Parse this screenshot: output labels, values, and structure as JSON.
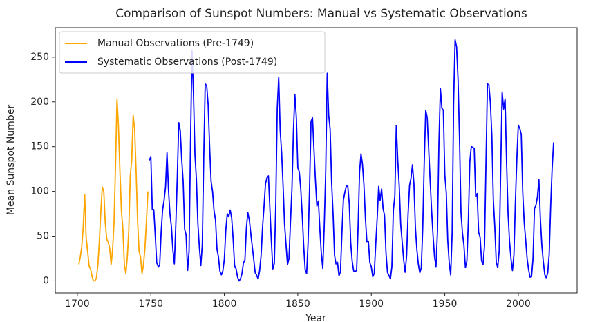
{
  "chart_data": {
    "type": "line",
    "title": "Comparison of Sunspot Numbers: Manual vs Systematic Observations",
    "xlabel": "Year",
    "ylabel": "Mean Sunspot Number",
    "xlim": [
      1685,
      2040
    ],
    "xticks": [
      1700,
      1750,
      1800,
      1850,
      1900,
      1950,
      2000
    ],
    "ylim": [
      -13.5,
      283
    ],
    "yticks": [
      0,
      50,
      100,
      150,
      200,
      250
    ],
    "grid": false,
    "legend": "upper left",
    "series": [
      {
        "name": "Manual Observations (Pre-1749)",
        "color": "#ffa500",
        "x": [
          1701,
          1702,
          1703,
          1704,
          1705,
          1706,
          1707,
          1708,
          1709,
          1710,
          1711,
          1712,
          1713,
          1714,
          1715,
          1716,
          1717,
          1718,
          1719,
          1720,
          1721,
          1722,
          1723,
          1724,
          1725,
          1726,
          1727,
          1728,
          1729,
          1730,
          1731,
          1732,
          1733,
          1734,
          1735,
          1736,
          1737,
          1738,
          1739,
          1740,
          1741,
          1742,
          1743,
          1744,
          1745,
          1746,
          1747,
          1748
        ],
        "values": [
          18.3,
          26.7,
          38.3,
          60.0,
          96.7,
          48.3,
          33.3,
          16.7,
          13.3,
          5.0,
          0.0,
          0.0,
          3.3,
          18.3,
          45.0,
          78.3,
          105.0,
          100.0,
          65.0,
          46.7,
          43.3,
          36.7,
          18.3,
          35.0,
          66.7,
          130.0,
          203.3,
          171.7,
          121.7,
          78.3,
          58.3,
          18.3,
          8.3,
          26.7,
          56.7,
          116.7,
          135.0,
          185.0,
          168.3,
          121.7,
          66.7,
          33.3,
          26.7,
          8.3,
          18.3,
          36.7,
          66.7,
          100.0
        ]
      },
      {
        "name": "Systematic Observations (Post-1749)",
        "color": "#0000ff",
        "x": [
          1749,
          1750,
          1751,
          1752,
          1753,
          1754,
          1755,
          1756,
          1757,
          1758,
          1759,
          1760,
          1761,
          1762,
          1763,
          1764,
          1765,
          1766,
          1767,
          1768,
          1769,
          1770,
          1771,
          1772,
          1773,
          1774,
          1775,
          1776,
          1777,
          1778,
          1779,
          1780,
          1781,
          1782,
          1783,
          1784,
          1785,
          1786,
          1787,
          1788,
          1789,
          1790,
          1791,
          1792,
          1793,
          1794,
          1795,
          1796,
          1797,
          1798,
          1799,
          1800,
          1801,
          1802,
          1803,
          1804,
          1805,
          1806,
          1807,
          1808,
          1809,
          1810,
          1811,
          1812,
          1813,
          1814,
          1815,
          1816,
          1817,
          1818,
          1819,
          1820,
          1821,
          1822,
          1823,
          1824,
          1825,
          1826,
          1827,
          1828,
          1829,
          1830,
          1831,
          1832,
          1833,
          1834,
          1835,
          1836,
          1837,
          1838,
          1839,
          1840,
          1841,
          1842,
          1843,
          1844,
          1845,
          1846,
          1847,
          1848,
          1849,
          1850,
          1851,
          1852,
          1853,
          1854,
          1855,
          1856,
          1857,
          1858,
          1859,
          1860,
          1861,
          1862,
          1863,
          1864,
          1865,
          1866,
          1867,
          1868,
          1869,
          1870,
          1871,
          1872,
          1873,
          1874,
          1875,
          1876,
          1877,
          1878,
          1879,
          1880,
          1881,
          1882,
          1883,
          1884,
          1885,
          1886,
          1887,
          1888,
          1889,
          1890,
          1891,
          1892,
          1893,
          1894,
          1895,
          1896,
          1897,
          1898,
          1899,
          1900,
          1901,
          1902,
          1903,
          1904,
          1905,
          1906,
          1907,
          1908,
          1909,
          1910,
          1911,
          1912,
          1913,
          1914,
          1915,
          1916,
          1917,
          1918,
          1919,
          1920,
          1921,
          1922,
          1923,
          1924,
          1925,
          1926,
          1927,
          1928,
          1929,
          1930,
          1931,
          1932,
          1933,
          1934,
          1935,
          1936,
          1937,
          1938,
          1939,
          1940,
          1941,
          1942,
          1943,
          1944,
          1945,
          1946,
          1947,
          1948,
          1949,
          1950,
          1951,
          1952,
          1953,
          1954,
          1955,
          1956,
          1957,
          1958,
          1959,
          1960,
          1961,
          1962,
          1963,
          1964,
          1965,
          1966,
          1967,
          1968,
          1969,
          1970,
          1971,
          1972,
          1973,
          1974,
          1975,
          1976,
          1977,
          1978,
          1979,
          1980,
          1981,
          1982,
          1983,
          1984,
          1985,
          1986,
          1987,
          1988,
          1989,
          1990,
          1991,
          1992,
          1993,
          1994,
          1995,
          1996,
          1997,
          1998,
          1999,
          2000,
          2001,
          2002,
          2003,
          2004,
          2005,
          2006,
          2007,
          2008,
          2009,
          2010,
          2011,
          2012,
          2013,
          2014,
          2015,
          2016,
          2017,
          2018,
          2019,
          2020,
          2021,
          2022,
          2023,
          2024
        ],
        "values": [
          134.7,
          139.0,
          79.5,
          79.7,
          51.2,
          20.3,
          16.0,
          17.0,
          54.0,
          79.3,
          90.0,
          104.8,
          143.2,
          102.0,
          75.2,
          60.7,
          34.8,
          19.0,
          63.0,
          116.3,
          176.8,
          168.0,
          136.0,
          110.8,
          58.0,
          51.0,
          11.7,
          33.0,
          154.2,
          257.3,
          209.8,
          141.3,
          113.5,
          64.2,
          38.0,
          17.0,
          40.2,
          138.2,
          220.0,
          218.2,
          196.8,
          149.8,
          111.0,
          100.0,
          78.2,
          68.3,
          35.5,
          26.7,
          10.7,
          6.8,
          11.3,
          24.2,
          56.7,
          75.0,
          71.8,
          79.2,
          70.3,
          46.8,
          16.8,
          13.5,
          4.2,
          0.0,
          2.3,
          8.3,
          20.3,
          23.2,
          59.0,
          76.3,
          68.3,
          52.9,
          38.5,
          24.2,
          9.2,
          6.3,
          2.2,
          11.4,
          28.2,
          59.9,
          83.0,
          108.5,
          115.2,
          117.4,
          80.8,
          44.3,
          13.4,
          19.5,
          85.8,
          192.7,
          227.3,
          168.7,
          143.0,
          105.5,
          63.3,
          40.3,
          18.1,
          25.1,
          65.8,
          102.7,
          166.3,
          208.3,
          182.5,
          126.3,
          122.0,
          102.7,
          74.1,
          39.0,
          12.7,
          8.2,
          43.4,
          104.4,
          178.3,
          182.2,
          146.6,
          112.1,
          83.5,
          89.2,
          57.8,
          30.7,
          13.9,
          62.8,
          123.6,
          232.0,
          185.3,
          169.2,
          110.1,
          74.5,
          28.3,
          18.9,
          20.7,
          5.7,
          10.0,
          53.7,
          90.5,
          99.0,
          106.1,
          105.8,
          86.3,
          42.4,
          21.8,
          11.2,
          10.4,
          11.8,
          59.5,
          121.7,
          142.0,
          130.0,
          106.6,
          69.4,
          43.8,
          44.4,
          20.2,
          15.7,
          4.6,
          8.5,
          40.8,
          70.1,
          105.5,
          90.1,
          102.8,
          80.9,
          73.2,
          30.9,
          9.5,
          6.0,
          2.4,
          16.1,
          79.0,
          95.0,
          173.6,
          134.6,
          105.7,
          62.7,
          43.5,
          23.7,
          9.7,
          27.9,
          74.0,
          106.5,
          114.7,
          129.7,
          108.2,
          59.4,
          35.1,
          18.6,
          9.2,
          14.6,
          60.2,
          132.8,
          190.6,
          182.6,
          148.0,
          113.0,
          79.2,
          50.8,
          27.1,
          16.1,
          55.3,
          154.3,
          214.7,
          193.0,
          190.7,
          118.9,
          98.3,
          45.0,
          20.1,
          6.6,
          54.2,
          200.7,
          269.3,
          261.7,
          225.1,
          159.0,
          76.4,
          53.4,
          39.9,
          15.0,
          22.0,
          66.8,
          132.9,
          150.0,
          149.4,
          148.0,
          94.4,
          97.6,
          54.1,
          49.2,
          22.5,
          18.4,
          39.3,
          131.0,
          220.1,
          218.9,
          198.9,
          162.4,
          91.0,
          60.5,
          20.6,
          14.8,
          33.9,
          123.0,
          211.1,
          191.8,
          203.3,
          133.0,
          76.1,
          44.9,
          25.1,
          11.6,
          28.9,
          88.3,
          136.3,
          173.9,
          170.4,
          163.6,
          99.3,
          65.3,
          45.8,
          24.7,
          12.6,
          4.2,
          4.8,
          24.9,
          80.8,
          84.5,
          94.0,
          113.3,
          69.8,
          39.8,
          21.7,
          7.0,
          3.6,
          8.8,
          29.6,
          83.2,
          125.5,
          154.7
        ]
      }
    ]
  }
}
